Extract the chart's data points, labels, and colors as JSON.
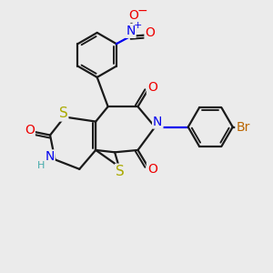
{
  "bg_color": "#ebebeb",
  "bond_color": "#1a1a1a",
  "bond_width": 1.6,
  "dbl_sep": 0.1,
  "atom_colors": {
    "S": "#aaaa00",
    "N": "#0000ee",
    "O": "#ee0000",
    "Br": "#bb6600",
    "H": "#44aaaa",
    "C": "#1a1a1a"
  },
  "fs": 10,
  "fss": 8
}
